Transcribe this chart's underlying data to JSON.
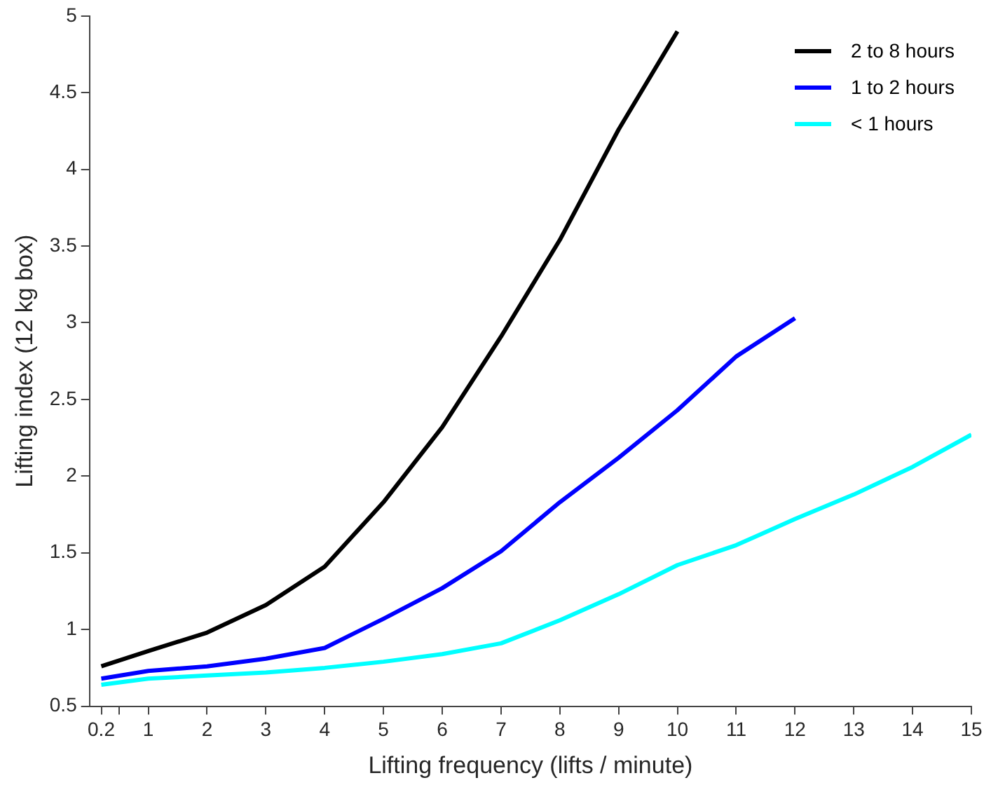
{
  "chart_data": {
    "type": "line",
    "xlabel": "Lifting frequency (lifts / minute)",
    "ylabel": "Lifting index (12 kg box)",
    "xlim": [
      0,
      15
    ],
    "xticks": [
      0.2,
      {
        "value": 0.5,
        "label": null
      },
      1,
      2,
      3,
      4,
      5,
      6,
      7,
      8,
      9,
      10,
      11,
      12,
      13,
      14,
      15
    ],
    "ylim": [
      0.5,
      5
    ],
    "yticks": [
      0.5,
      1,
      1.5,
      2,
      2.5,
      3,
      3.5,
      4,
      4.5,
      5
    ],
    "grid": false,
    "legend": "top right",
    "marker": "none",
    "line_style": "solid",
    "series": [
      {
        "name": "2 to 8 hours",
        "color": "#000000",
        "x": [
          0.2,
          1,
          2,
          3,
          4,
          5,
          6,
          7,
          8,
          9,
          10
        ],
        "values": [
          0.76,
          0.86,
          0.98,
          1.16,
          1.41,
          1.83,
          2.32,
          2.91,
          3.54,
          4.26,
          4.9
        ]
      },
      {
        "name": "1 to 2 hours",
        "color": "#0000ff",
        "x": [
          0.2,
          1,
          2,
          3,
          4,
          5,
          6,
          7,
          8,
          9,
          10,
          11,
          12
        ],
        "values": [
          0.68,
          0.73,
          0.76,
          0.81,
          0.88,
          1.07,
          1.27,
          1.51,
          1.83,
          2.12,
          2.43,
          2.78,
          3.03
        ]
      },
      {
        "name": "< 1 hours",
        "color": "#00ffff",
        "x": [
          0.2,
          1,
          2,
          3,
          4,
          5,
          6,
          7,
          8,
          9,
          10,
          11,
          12,
          13,
          14,
          15
        ],
        "values": [
          0.64,
          0.68,
          0.7,
          0.72,
          0.75,
          0.79,
          0.84,
          0.91,
          1.06,
          1.23,
          1.42,
          1.55,
          1.72,
          1.88,
          2.06,
          2.27
        ]
      }
    ]
  }
}
